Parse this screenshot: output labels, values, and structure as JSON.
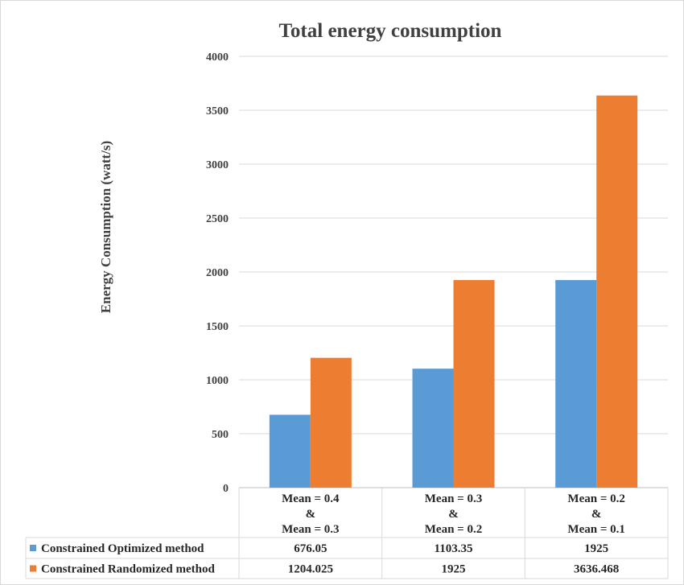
{
  "chart_data": {
    "type": "bar",
    "title": "Total energy consumption",
    "ylabel": "Energy Consumption (watt/s)",
    "xlabel": "",
    "ylim": [
      0,
      4000
    ],
    "yticks": [
      "0",
      "500",
      "1000",
      "1500",
      "2000",
      "2500",
      "3000",
      "3500",
      "4000"
    ],
    "grid": true,
    "legend_position": "bottom (data table)",
    "categories": [
      [
        "Mean = 0.4",
        "&",
        "Mean = 0.3"
      ],
      [
        "Mean = 0.3",
        "&",
        "Mean = 0.2"
      ],
      [
        "Mean = 0.2",
        "&",
        "Mean = 0.1"
      ]
    ],
    "series": [
      {
        "name": "Constrained Optimized method",
        "color": "#5b9bd5",
        "values": [
          676.05,
          1103.35,
          1925
        ],
        "labels": [
          "676.05",
          "1103.35",
          "1925"
        ]
      },
      {
        "name": "Constrained Randomized method",
        "color": "#ed7d31",
        "values": [
          1204.025,
          1925,
          3636.468
        ],
        "labels": [
          "1204.025",
          "1925",
          "3636.468"
        ]
      }
    ]
  }
}
